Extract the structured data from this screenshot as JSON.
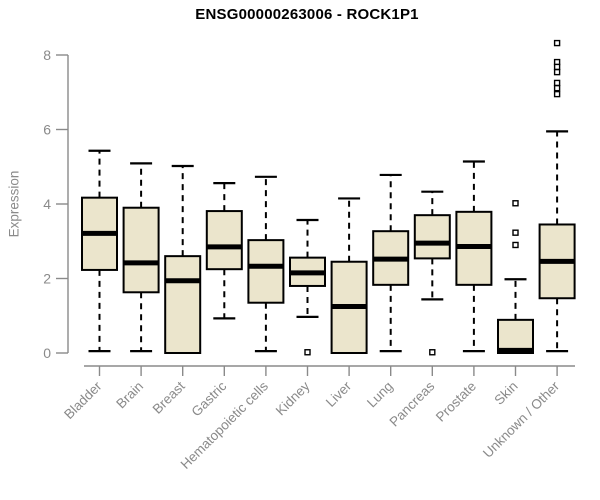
{
  "figure": {
    "title": "ENSG00000263006 - ROCK1P1",
    "ylabel": "Expression"
  },
  "colors": {
    "background": "#FFFFFF",
    "title": "#000000",
    "axis": "#8A8A8A",
    "tick_label": "#8A8A8A",
    "box_fill": "#EBE5CC",
    "box_stroke": "#000000",
    "median": "#000000",
    "whisker": "#000000",
    "outlier_fill": "#FFFFFF",
    "outlier_stroke": "#000000"
  },
  "chart_data": {
    "type": "box",
    "title": "ENSG00000263006 - ROCK1P1",
    "xlabel": "",
    "ylabel": "Expression",
    "ylim": [
      0,
      8
    ],
    "yticks": [
      0,
      2,
      4,
      6,
      8
    ],
    "grid": false,
    "legend": "none",
    "categories": [
      "Bladder",
      "Brain",
      "Breast",
      "Gastric",
      "Hematopoietic cells",
      "Kidney",
      "Liver",
      "Lung",
      "Pancreas",
      "Prostate",
      "Skin",
      "Unknown / Other"
    ],
    "series": [
      {
        "name": "Bladder",
        "low": 0.05,
        "q1": 2.23,
        "median": 3.21,
        "q3": 4.17,
        "high": 5.43,
        "outliers": []
      },
      {
        "name": "Brain",
        "low": 0.05,
        "q1": 1.63,
        "median": 2.42,
        "q3": 3.9,
        "high": 5.09,
        "outliers": []
      },
      {
        "name": "Breast",
        "low": 0.0,
        "q1": 0.0,
        "median": 1.94,
        "q3": 2.6,
        "high": 5.02,
        "outliers": []
      },
      {
        "name": "Gastric",
        "low": 0.93,
        "q1": 2.25,
        "median": 2.85,
        "q3": 3.81,
        "high": 4.56,
        "outliers": []
      },
      {
        "name": "Hematopoietic cells",
        "low": 0.05,
        "q1": 1.35,
        "median": 2.33,
        "q3": 3.03,
        "high": 4.73,
        "outliers": []
      },
      {
        "name": "Kidney",
        "low": 0.97,
        "q1": 1.8,
        "median": 2.15,
        "q3": 2.56,
        "high": 3.57,
        "outliers": [
          0.02
        ]
      },
      {
        "name": "Liver",
        "low": 0.0,
        "q1": 0.0,
        "median": 1.25,
        "q3": 2.45,
        "high": 4.15,
        "outliers": []
      },
      {
        "name": "Lung",
        "low": 0.05,
        "q1": 1.83,
        "median": 2.52,
        "q3": 3.27,
        "high": 4.78,
        "outliers": []
      },
      {
        "name": "Pancreas",
        "low": 1.44,
        "q1": 2.54,
        "median": 2.95,
        "q3": 3.7,
        "high": 4.33,
        "outliers": [
          0.02
        ]
      },
      {
        "name": "Prostate",
        "low": 0.05,
        "q1": 1.83,
        "median": 2.86,
        "q3": 3.79,
        "high": 5.14,
        "outliers": []
      },
      {
        "name": "Skin",
        "low": 0.0,
        "q1": 0.0,
        "median": 0.07,
        "q3": 0.89,
        "high": 1.98,
        "outliers": [
          4.02,
          3.23,
          2.9
        ]
      },
      {
        "name": "Unknown / Other",
        "low": 0.05,
        "q1": 1.47,
        "median": 2.46,
        "q3": 3.45,
        "high": 5.95,
        "outliers": [
          8.32,
          7.81,
          7.68,
          7.54,
          7.25,
          7.11,
          6.95
        ]
      }
    ]
  }
}
